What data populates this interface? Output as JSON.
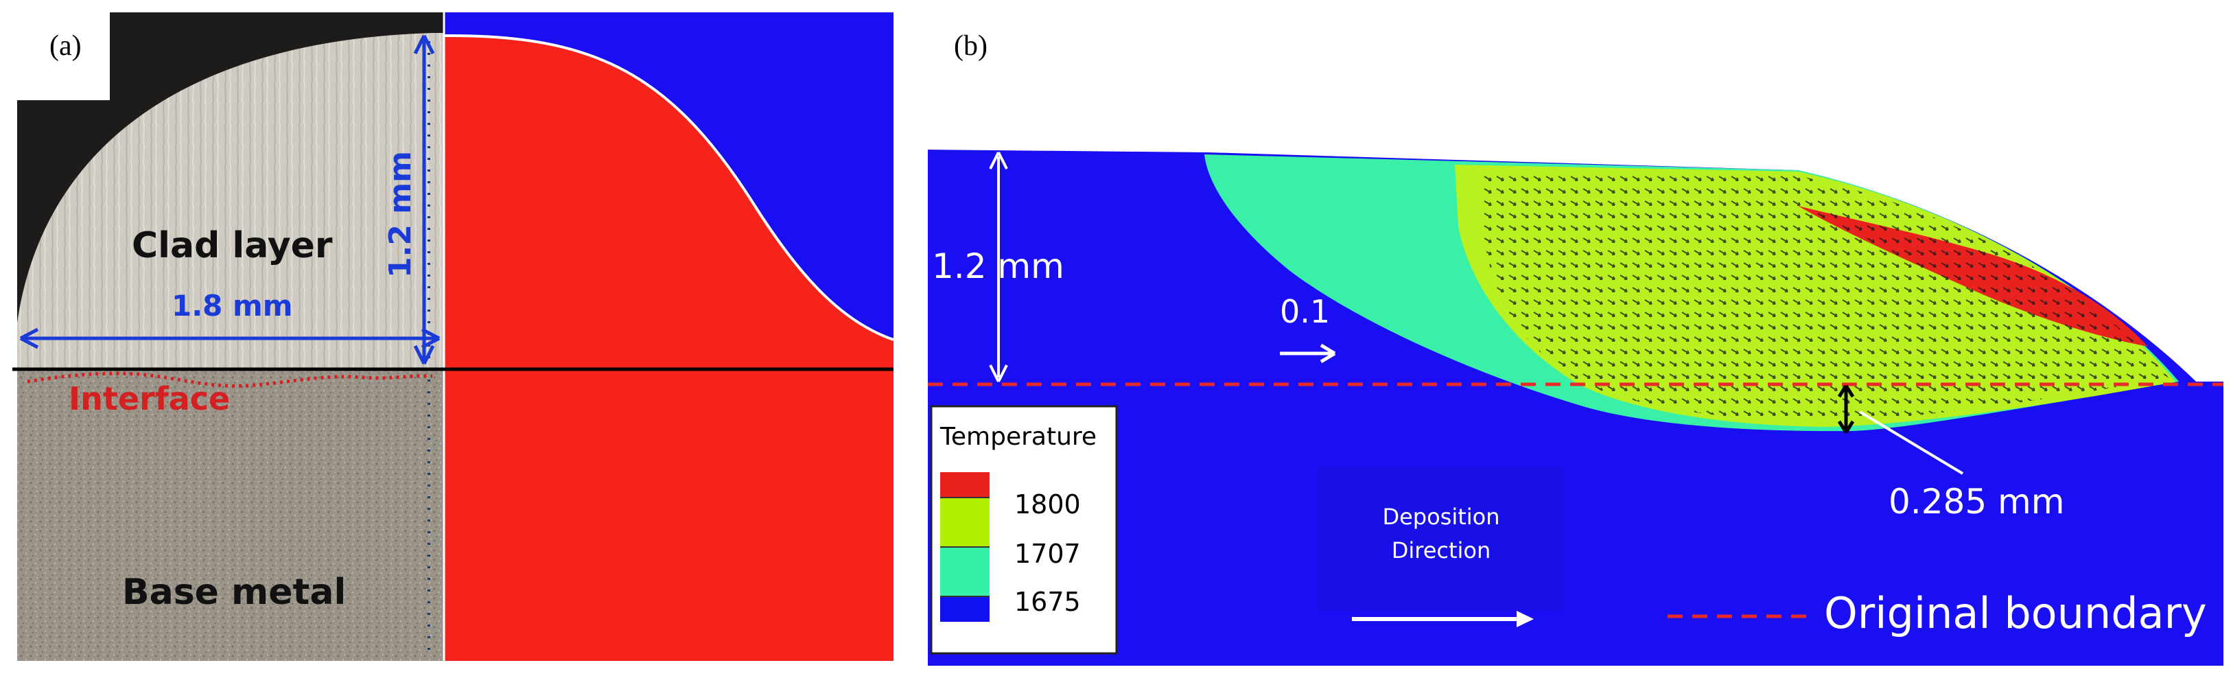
{
  "panel_a": {
    "label": "(a)",
    "clad_layer": "Clad layer",
    "interface": "Interface",
    "base_metal": "Base metal",
    "width_dim": "1.8 mm",
    "height_dim": "1.2 mm"
  },
  "panel_b": {
    "label": "(b)",
    "height_dim": "1.2 mm",
    "velocity": "0.1",
    "depth_dim": "0.285 mm",
    "deposition_line1": "Deposition",
    "deposition_line2": "Direction",
    "original_boundary": "Original boundary",
    "legend": {
      "title": "Temperature",
      "entries": [
        {
          "value": "1800",
          "color": "#e8221e"
        },
        {
          "value": "1707",
          "color": "#b3f000"
        },
        {
          "value": "1675",
          "color": "#35f0a6"
        },
        {
          "value": "",
          "color": "#1010f0"
        }
      ]
    }
  },
  "colors": {
    "blue": "#1a0ff2",
    "red": "#f5231a",
    "green_yellow": "#b8f020",
    "cyan": "#3af0a8",
    "dim_blue": "#1a3bd8",
    "interface_red": "#d42020"
  }
}
